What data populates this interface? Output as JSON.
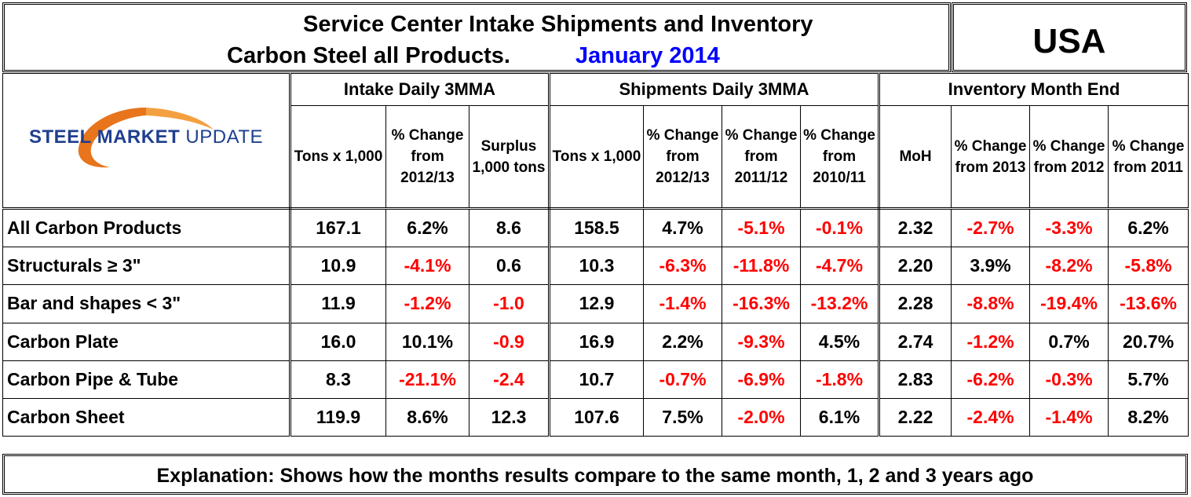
{
  "title": {
    "line1": "Service Center Intake Shipments and Inventory",
    "line2": "Carbon Steel all Products.",
    "date": "January 2014",
    "country": "USA"
  },
  "logo": {
    "word1": "STEEL",
    "word2": "MARKET",
    "word3": "UPDATE"
  },
  "groups": {
    "intake": "Intake Daily 3MMA",
    "shipments": "Shipments Daily 3MMA",
    "inventory": "Inventory Month End"
  },
  "columns": [
    "Tons x 1,000",
    "% Change from 2012/13",
    "Surplus 1,000 tons",
    "Tons x 1,000",
    "% Change from 2012/13",
    "% Change from 2011/12",
    "% Change from 2010/11",
    "MoH",
    "% Change from 2013",
    "% Change from 2012",
    "% Change from 2011"
  ],
  "rows": [
    {
      "label": "All Carbon Products",
      "values": [
        "167.1",
        "6.2%",
        "8.6",
        "158.5",
        "4.7%",
        "-5.1%",
        "-0.1%",
        "2.32",
        "-2.7%",
        "-3.3%",
        "6.2%"
      ]
    },
    {
      "label": "Structurals ≥ 3\"",
      "values": [
        "10.9",
        "-4.1%",
        "0.6",
        "10.3",
        "-6.3%",
        "-11.8%",
        "-4.7%",
        "2.20",
        "3.9%",
        "-8.2%",
        "-5.8%"
      ]
    },
    {
      "label": "Bar and shapes < 3\"",
      "values": [
        "11.9",
        "-1.2%",
        "-1.0",
        "12.9",
        "-1.4%",
        "-16.3%",
        "-13.2%",
        "2.28",
        "-8.8%",
        "-19.4%",
        "-13.6%"
      ]
    },
    {
      "label": "Carbon Plate",
      "values": [
        "16.0",
        "10.1%",
        "-0.9",
        "16.9",
        "2.2%",
        "-9.3%",
        "4.5%",
        "2.74",
        "-1.2%",
        "0.7%",
        "20.7%"
      ]
    },
    {
      "label": "Carbon Pipe & Tube",
      "values": [
        "8.3",
        "-21.1%",
        "-2.4",
        "10.7",
        "-0.7%",
        "-6.9%",
        "-1.8%",
        "2.83",
        "-6.2%",
        "-0.3%",
        "5.7%"
      ]
    },
    {
      "label": "Carbon Sheet",
      "values": [
        "119.9",
        "8.6%",
        "12.3",
        "107.6",
        "7.5%",
        "-2.0%",
        "6.1%",
        "2.22",
        "-2.4%",
        "-1.4%",
        "8.2%"
      ]
    }
  ],
  "colors": {
    "negative": "#ff0000",
    "date": "#0000ff",
    "logo_blue": "#1f3f8f",
    "logo_orange": "#e8741c"
  },
  "explanation": "Explanation: Shows how the months results compare to the same month, 1, 2 and 3 years ago"
}
